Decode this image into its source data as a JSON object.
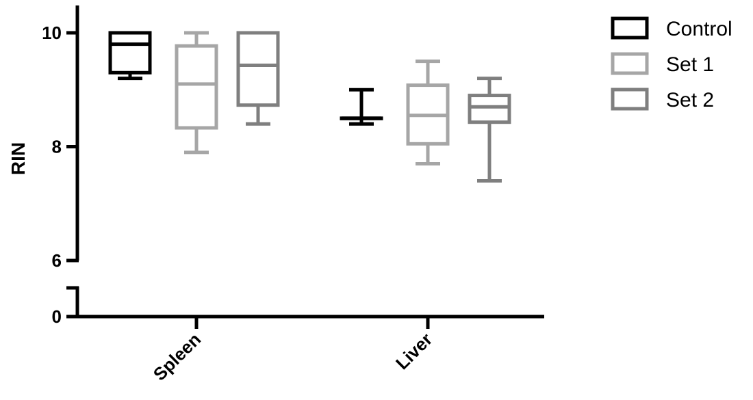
{
  "chart_data": {
    "type": "box",
    "ylabel": "RIN",
    "categories": [
      "Spleen",
      "Liver"
    ],
    "y_ticks": [
      "0",
      "6",
      "8",
      "10"
    ],
    "y_axis_break": {
      "lower_segment": [
        0,
        0.5
      ],
      "upper_segment": [
        6,
        10.5
      ]
    },
    "legend_position": "top-right",
    "series": [
      {
        "name": "Control",
        "color": "#000000",
        "boxes": [
          {
            "category": "Spleen",
            "min": 9.2,
            "q1": 9.3,
            "median": 9.8,
            "q3": 10.0,
            "max": 10.0
          },
          {
            "category": "Liver",
            "min": 8.4,
            "q1": 8.5,
            "median": 8.5,
            "q3": 8.5,
            "max": 9.0
          }
        ]
      },
      {
        "name": "Set 1",
        "color": "#a6a6a6",
        "boxes": [
          {
            "category": "Spleen",
            "min": 7.9,
            "q1": 8.33,
            "median": 9.1,
            "q3": 9.77,
            "max": 10.0
          },
          {
            "category": "Liver",
            "min": 7.7,
            "q1": 8.05,
            "median": 8.55,
            "q3": 9.08,
            "max": 9.5
          }
        ]
      },
      {
        "name": "Set 2",
        "color": "#7f7f7f",
        "boxes": [
          {
            "category": "Spleen",
            "min": 8.4,
            "q1": 8.73,
            "median": 9.43,
            "q3": 10.0,
            "max": 10.0
          },
          {
            "category": "Liver",
            "min": 7.4,
            "q1": 8.43,
            "median": 8.7,
            "q3": 8.9,
            "max": 9.2
          }
        ]
      }
    ]
  }
}
